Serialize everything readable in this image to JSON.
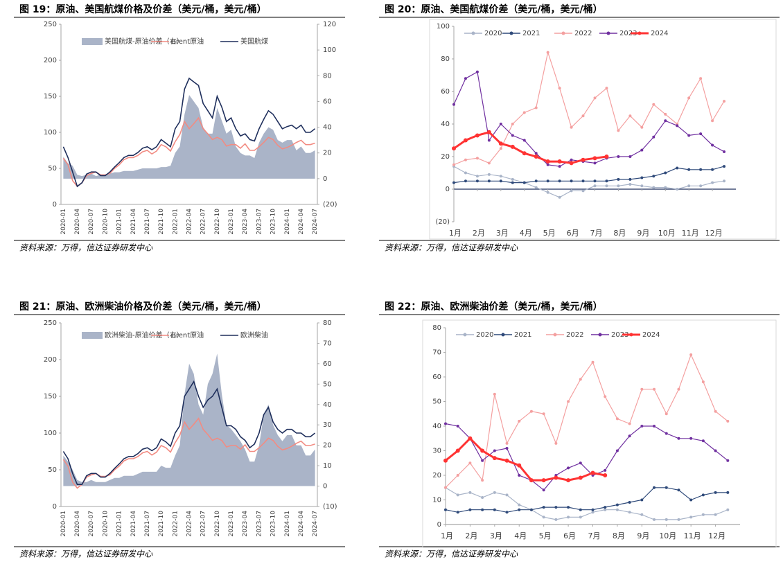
{
  "chart_data": [
    {
      "type": "combo",
      "title": "图 19：原油、美国航煤价格及价差（美元/桶，美元/桶）",
      "note": "资料来源：万得，信达证券研发中心",
      "categories": [
        "2020-01",
        null,
        null,
        "2020-04",
        null,
        null,
        "2020-07",
        null,
        null,
        "2020-10",
        null,
        null,
        "2021-01",
        null,
        null,
        "2021-04",
        null,
        null,
        "2021-07",
        null,
        null,
        "2021-10",
        null,
        null,
        "2022-01",
        null,
        null,
        "2022-04",
        null,
        null,
        "2022-07",
        null,
        null,
        "2022-10",
        null,
        null,
        "2023-01",
        null,
        null,
        "2023-04",
        null,
        null,
        "2023-07",
        null,
        null,
        "2023-10",
        null,
        null,
        "2024-01",
        null,
        null,
        "2024-04",
        null,
        null,
        "2024-07"
      ],
      "ylim": [
        0,
        250
      ],
      "yticks": [
        0,
        50,
        100,
        150,
        200,
        250
      ],
      "y2lim": [
        -20,
        120
      ],
      "y2ticks": [
        {
          "value": -20,
          "label": "(20)"
        },
        0,
        20,
        40,
        60,
        80,
        100,
        120
      ],
      "neg_tick_color": "#ff0000",
      "series": [
        {
          "name": "美国航煤-原油价差（右）",
          "color": "#aab4c8",
          "axis": "y2",
          "kind": "area",
          "values": [
            17,
            12,
            10,
            3,
            2,
            3,
            4,
            2,
            3,
            3,
            4,
            5,
            5,
            6,
            6,
            6,
            7,
            8,
            8,
            8,
            8,
            9,
            9,
            10,
            20,
            25,
            50,
            65,
            60,
            55,
            40,
            35,
            35,
            55,
            45,
            35,
            38,
            25,
            20,
            18,
            18,
            16,
            28,
            35,
            40,
            38,
            30,
            28,
            30,
            30,
            22,
            25,
            20,
            20,
            22
          ]
        },
        {
          "name": "Brent原油",
          "color": "#f28b82",
          "kind": "line",
          "values": [
            64,
            55,
            33,
            25,
            30,
            40,
            43,
            45,
            41,
            41,
            43,
            50,
            55,
            62,
            65,
            65,
            68,
            73,
            75,
            70,
            74,
            83,
            80,
            74,
            87,
            97,
            115,
            105,
            112,
            120,
            105,
            98,
            90,
            93,
            90,
            81,
            83,
            83,
            78,
            84,
            75,
            75,
            80,
            86,
            93,
            90,
            82,
            77,
            79,
            82,
            86,
            89,
            83,
            83,
            85
          ]
        },
        {
          "name": "美国航煤",
          "color": "#1f2f5c",
          "kind": "line",
          "values": [
            80,
            65,
            45,
            25,
            30,
            42,
            45,
            45,
            40,
            40,
            45,
            52,
            58,
            65,
            68,
            68,
            72,
            78,
            80,
            76,
            80,
            90,
            85,
            80,
            105,
            115,
            160,
            175,
            170,
            165,
            140,
            130,
            120,
            150,
            135,
            115,
            120,
            105,
            95,
            98,
            90,
            88,
            105,
            118,
            130,
            125,
            115,
            105,
            108,
            110,
            105,
            110,
            100,
            100,
            105
          ]
        }
      ]
    },
    {
      "type": "line",
      "title": "图 20：原油、美国航煤价差（美元/桶，美元/桶）",
      "note": "资料来源：万得，信达证券研发中心",
      "x": [
        1,
        1.5,
        2,
        2.5,
        3,
        3.5,
        4,
        4.5,
        5,
        5.5,
        6,
        6.5,
        7,
        7.5,
        8,
        8.5,
        9,
        9.5,
        10,
        10.5,
        11,
        11.5,
        12,
        12.5
      ],
      "xlim": [
        1,
        13
      ],
      "xticks": [
        {
          "value": 1,
          "label": "1月"
        },
        {
          "value": 2,
          "label": "2月"
        },
        {
          "value": 3,
          "label": "3月"
        },
        {
          "value": 4,
          "label": "4月"
        },
        {
          "value": 5,
          "label": "5月"
        },
        {
          "value": 6,
          "label": "6月"
        },
        {
          "value": 7,
          "label": "7月"
        },
        {
          "value": 8,
          "label": "8月"
        },
        {
          "value": 9,
          "label": "9月"
        },
        {
          "value": 10,
          "label": "10月"
        },
        {
          "value": 11,
          "label": "11月"
        },
        {
          "value": 12,
          "label": "12月"
        }
      ],
      "ylim": [
        -20,
        100
      ],
      "yticks": [
        {
          "value": -20,
          "label": "(20)"
        },
        0,
        20,
        40,
        60,
        80,
        100
      ],
      "neg_tick_color": "#ff0000",
      "zero_line": "#1f2f5c",
      "series": [
        {
          "name": "2020",
          "color": "#a9b4c8",
          "values": [
            14,
            10,
            8,
            9,
            8,
            6,
            4,
            1,
            -2,
            -5,
            -1,
            -1,
            2,
            2,
            2,
            3,
            2,
            1,
            1,
            0,
            2,
            2,
            4,
            5
          ]
        },
        {
          "name": "2021",
          "color": "#2f4a7a",
          "values": [
            4,
            5,
            5,
            5,
            5,
            4,
            4,
            5,
            5,
            5,
            5,
            5,
            5,
            5,
            6,
            6,
            7,
            8,
            10,
            13,
            12,
            12,
            12,
            14
          ]
        },
        {
          "name": "2022",
          "color": "#f4a0a0",
          "values": [
            15,
            18,
            19,
            16,
            25,
            40,
            47,
            50,
            84,
            62,
            38,
            45,
            56,
            62,
            36,
            45,
            38,
            52,
            46,
            40,
            56,
            68,
            42,
            54
          ]
        },
        {
          "name": "2023",
          "color": "#7030a0",
          "values": [
            52,
            68,
            72,
            30,
            40,
            33,
            30,
            22,
            15,
            14,
            18,
            17,
            16,
            19,
            20,
            20,
            24,
            32,
            42,
            39,
            33,
            34,
            27,
            23
          ]
        },
        {
          "name": "2024",
          "color": "#ff3333",
          "values": [
            25,
            30,
            33,
            35,
            28,
            26,
            22,
            20,
            17,
            17,
            16,
            18,
            19,
            20,
            null,
            null,
            null,
            null,
            null,
            null,
            null,
            null,
            null,
            null
          ]
        }
      ]
    },
    {
      "type": "combo",
      "title": "图 21：原油、欧洲柴油价格及价差（美元/桶，美元/桶）",
      "note": "资料来源：万得，信达证券研发中心",
      "categories": [
        "2020-01",
        null,
        null,
        "2020-04",
        null,
        null,
        "2020-07",
        null,
        null,
        "2020-10",
        null,
        null,
        "2021-01",
        null,
        null,
        "2021-04",
        null,
        null,
        "2021-07",
        null,
        null,
        "2021-10",
        null,
        null,
        "2022-01",
        null,
        null,
        "2022-04",
        null,
        null,
        "2022-07",
        null,
        null,
        "2022-10",
        null,
        null,
        "2023-01",
        null,
        null,
        "2023-04",
        null,
        null,
        "2023-07",
        null,
        null,
        "2023-10",
        null,
        null,
        "2024-01",
        null,
        null,
        "2024-04",
        null,
        null,
        "2024-07"
      ],
      "ylim": [
        0,
        250
      ],
      "yticks": [
        0,
        50,
        100,
        150,
        200,
        250
      ],
      "y2lim": [
        -10,
        80
      ],
      "y2ticks": [
        {
          "value": -10,
          "label": "(10)"
        },
        0,
        10,
        20,
        30,
        40,
        50,
        60,
        70,
        80
      ],
      "neg_tick_color": "#ff0000",
      "series": [
        {
          "name": "欧洲柴油-原油价差（右）",
          "color": "#aab4c8",
          "axis": "y2",
          "kind": "area",
          "values": [
            15,
            12,
            8,
            3,
            2,
            2,
            3,
            2,
            2,
            2,
            3,
            4,
            4,
            5,
            5,
            5,
            6,
            7,
            7,
            7,
            7,
            10,
            9,
            9,
            15,
            20,
            45,
            60,
            55,
            40,
            35,
            50,
            55,
            65,
            45,
            30,
            28,
            25,
            22,
            18,
            12,
            12,
            20,
            35,
            40,
            30,
            25,
            22,
            25,
            25,
            20,
            20,
            15,
            15,
            18
          ]
        },
        {
          "name": "Brent原油",
          "color": "#f28b82",
          "kind": "line",
          "values": [
            64,
            55,
            33,
            25,
            30,
            40,
            43,
            45,
            41,
            41,
            43,
            50,
            55,
            62,
            65,
            65,
            68,
            73,
            75,
            70,
            74,
            83,
            80,
            74,
            87,
            97,
            115,
            105,
            112,
            120,
            105,
            98,
            90,
            93,
            90,
            81,
            83,
            83,
            78,
            84,
            75,
            75,
            80,
            86,
            93,
            90,
            82,
            77,
            79,
            82,
            86,
            89,
            83,
            83,
            85
          ]
        },
        {
          "name": "欧洲柴油",
          "color": "#1f2f5c",
          "kind": "line",
          "values": [
            75,
            65,
            45,
            30,
            30,
            42,
            45,
            45,
            40,
            40,
            45,
            52,
            58,
            65,
            68,
            68,
            72,
            78,
            80,
            76,
            80,
            92,
            88,
            82,
            100,
            110,
            150,
            160,
            170,
            150,
            135,
            145,
            150,
            160,
            135,
            110,
            110,
            105,
            95,
            90,
            80,
            85,
            100,
            125,
            135,
            115,
            105,
            100,
            105,
            105,
            100,
            100,
            95,
            95,
            100
          ]
        }
      ]
    },
    {
      "type": "line",
      "title": "图 22：原油、欧洲柴油价差（美元/桶，美元/桶）",
      "note": "资料来源：万得，信达证券研发中心",
      "x": [
        1,
        1.5,
        2,
        2.5,
        3,
        3.5,
        4,
        4.5,
        5,
        5.5,
        6,
        6.5,
        7,
        7.5,
        8,
        8.5,
        9,
        9.5,
        10,
        10.5,
        11,
        11.5,
        12,
        12.5
      ],
      "xlim": [
        1,
        13
      ],
      "xticks": [
        {
          "value": 1,
          "label": "1月"
        },
        {
          "value": 2,
          "label": "2月"
        },
        {
          "value": 3,
          "label": "3月"
        },
        {
          "value": 4,
          "label": "4月"
        },
        {
          "value": 5,
          "label": "5月"
        },
        {
          "value": 6,
          "label": "6月"
        },
        {
          "value": 7,
          "label": "7月"
        },
        {
          "value": 8,
          "label": "8月"
        },
        {
          "value": 9,
          "label": "9月"
        },
        {
          "value": 10,
          "label": "10月"
        },
        {
          "value": 11,
          "label": "11月"
        },
        {
          "value": 12,
          "label": "12月"
        }
      ],
      "ylim": [
        0,
        80
      ],
      "yticks": [
        0,
        10,
        20,
        30,
        40,
        50,
        60,
        70,
        80
      ],
      "zero_line": "#a6a6a6",
      "series": [
        {
          "name": "2020",
          "color": "#a9b4c8",
          "values": [
            15,
            12,
            13,
            11,
            13,
            12,
            8,
            6,
            3,
            2,
            3,
            3,
            5,
            6,
            6,
            5,
            4,
            2,
            2,
            2,
            3,
            4,
            4,
            6
          ]
        },
        {
          "name": "2021",
          "color": "#2f4a7a",
          "values": [
            6,
            5,
            6,
            6,
            6,
            5,
            6,
            6,
            7,
            7,
            7,
            6,
            6,
            7,
            8,
            9,
            10,
            15,
            15,
            14,
            10,
            12,
            13,
            13
          ]
        },
        {
          "name": "2022",
          "color": "#f4a0a0",
          "values": [
            15,
            20,
            25,
            18,
            53,
            33,
            42,
            46,
            45,
            33,
            50,
            59,
            66,
            52,
            43,
            41,
            55,
            55,
            45,
            55,
            69,
            58,
            46,
            42
          ]
        },
        {
          "name": "2023",
          "color": "#7030a0",
          "values": [
            41,
            40,
            35,
            26,
            30,
            31,
            20,
            18,
            14,
            20,
            23,
            25,
            20,
            22,
            30,
            36,
            40,
            40,
            37,
            35,
            35,
            34,
            30,
            26
          ]
        },
        {
          "name": "2024",
          "color": "#ff3333",
          "values": [
            26,
            30,
            35,
            30,
            27,
            26,
            24,
            18,
            18,
            19,
            18,
            19,
            21,
            20,
            null,
            null,
            null,
            null,
            null,
            null,
            null,
            null,
            null,
            null
          ]
        }
      ]
    }
  ]
}
